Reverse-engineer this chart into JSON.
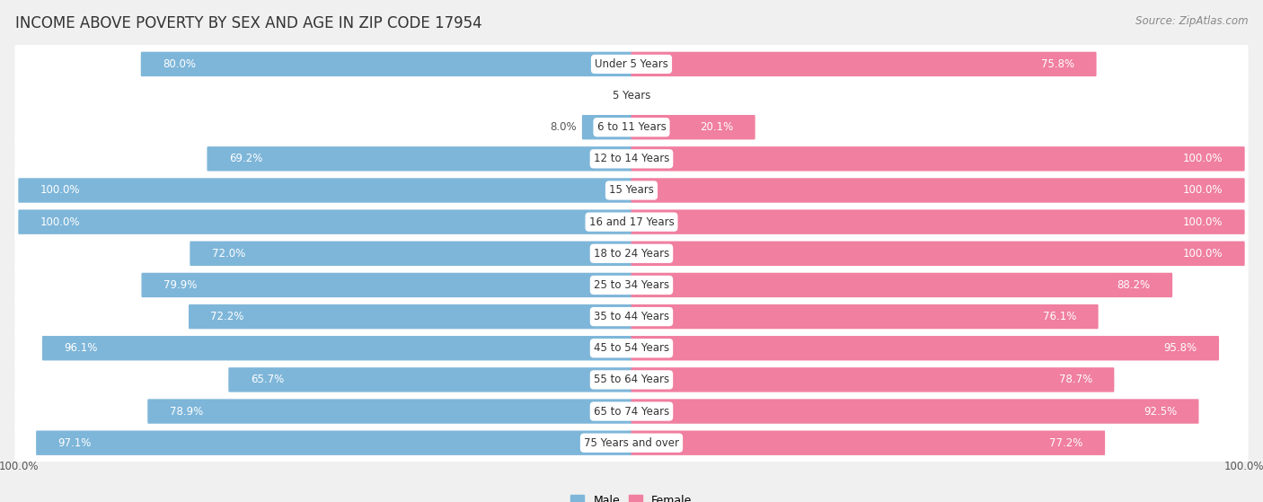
{
  "title": "INCOME ABOVE POVERTY BY SEX AND AGE IN ZIP CODE 17954",
  "source": "Source: ZipAtlas.com",
  "categories": [
    "Under 5 Years",
    "5 Years",
    "6 to 11 Years",
    "12 to 14 Years",
    "15 Years",
    "16 and 17 Years",
    "18 to 24 Years",
    "25 to 34 Years",
    "35 to 44 Years",
    "45 to 54 Years",
    "55 to 64 Years",
    "65 to 74 Years",
    "75 Years and over"
  ],
  "male_values": [
    80.0,
    0.0,
    8.0,
    69.2,
    100.0,
    100.0,
    72.0,
    79.9,
    72.2,
    96.1,
    65.7,
    78.9,
    97.1
  ],
  "female_values": [
    75.8,
    0.0,
    20.1,
    100.0,
    100.0,
    100.0,
    100.0,
    88.2,
    76.1,
    95.8,
    78.7,
    92.5,
    77.2
  ],
  "male_color": "#7eb6d9",
  "female_color": "#f07fa0",
  "male_label": "Male",
  "female_label": "Female",
  "background_color": "#f0f0f0",
  "bar_row_color": "#ffffff",
  "title_fontsize": 12,
  "source_fontsize": 8.5,
  "cat_label_fontsize": 8.5,
  "bar_label_fontsize": 8.5,
  "axis_tick_fontsize": 8.5,
  "xlim": 100
}
